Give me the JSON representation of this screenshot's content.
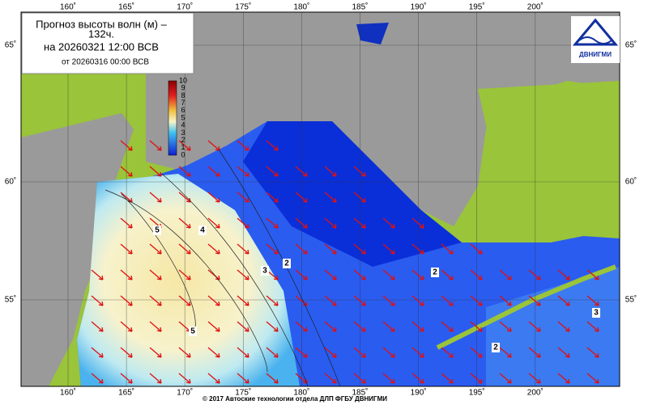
{
  "title": {
    "line1": "Прогноз высоты волн (м) –",
    "line2": "132ч.",
    "line3": "на 20260321 12:00 ВСВ",
    "line4": "от 20260316 00:00 ВСВ"
  },
  "logo": "ДВНИГМИ",
  "colorbar": {
    "labels": [
      10,
      9,
      8,
      7,
      6,
      5,
      4,
      3,
      2,
      1,
      0
    ]
  },
  "lon_labels": [
    "160˚",
    "165˚",
    "170˚",
    "175˚",
    "180˚",
    "185˚",
    "190˚",
    "195˚",
    "200˚"
  ],
  "lat_labels": [
    "65˚",
    "60˚",
    "55˚"
  ],
  "contour_labels": [
    "5",
    "4",
    "3",
    "2",
    "5",
    "2",
    "2",
    "3"
  ],
  "footer": "© 2017 Автоские технологии отдела ДЛП ФГБУ ДВНИГМИ"
}
